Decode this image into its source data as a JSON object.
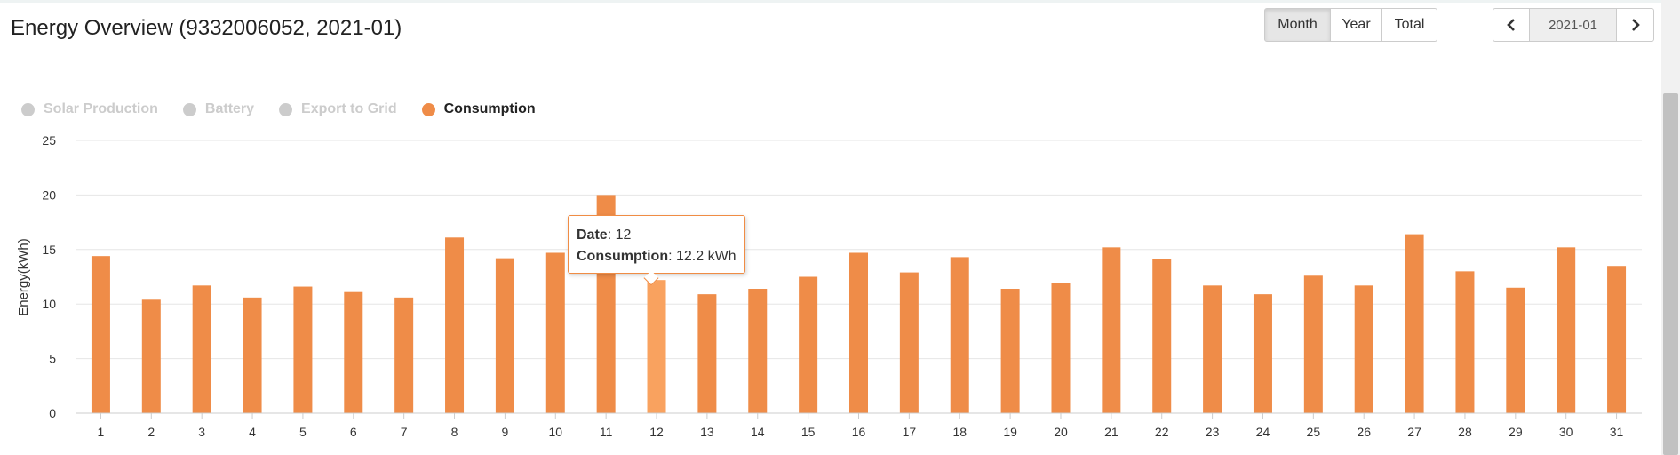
{
  "header": {
    "title": "Energy Overview (9332006052, 2021-01)",
    "range_buttons": [
      "Month",
      "Year",
      "Total"
    ],
    "active_range": "Month",
    "period_value": "2021-01"
  },
  "legend": [
    {
      "label": "Solar Production",
      "color": "#cccccc",
      "active": false
    },
    {
      "label": "Battery",
      "color": "#cccccc",
      "active": false
    },
    {
      "label": "Export to Grid",
      "color": "#cccccc",
      "active": false
    },
    {
      "label": "Consumption",
      "color": "#ef8c48",
      "active": true
    }
  ],
  "tooltip": {
    "date_label": "Date",
    "date_value": "12",
    "series_label": "Consumption",
    "series_value": "12.2 kWh"
  },
  "chart_data": {
    "type": "bar",
    "title": "",
    "xlabel": "",
    "ylabel": "Energy(kWh)",
    "ylim": [
      0,
      25
    ],
    "yticks": [
      0,
      5,
      10,
      15,
      20,
      25
    ],
    "grid": true,
    "categories": [
      "1",
      "2",
      "3",
      "4",
      "5",
      "6",
      "7",
      "8",
      "9",
      "10",
      "11",
      "12",
      "13",
      "14",
      "15",
      "16",
      "17",
      "18",
      "19",
      "20",
      "21",
      "22",
      "23",
      "24",
      "25",
      "26",
      "27",
      "28",
      "29",
      "30",
      "31"
    ],
    "series": [
      {
        "name": "Consumption",
        "color": "#ef8c48",
        "highlight_color": "#f9a25f",
        "highlight_index": 11,
        "values": [
          14.4,
          10.4,
          11.7,
          10.6,
          11.6,
          11.1,
          10.6,
          16.1,
          14.2,
          14.7,
          20.0,
          12.2,
          10.9,
          11.4,
          12.5,
          14.7,
          12.9,
          14.3,
          11.4,
          11.9,
          15.2,
          14.1,
          11.7,
          10.9,
          12.6,
          11.7,
          16.4,
          13.0,
          11.5,
          15.2,
          13.5
        ]
      }
    ]
  }
}
